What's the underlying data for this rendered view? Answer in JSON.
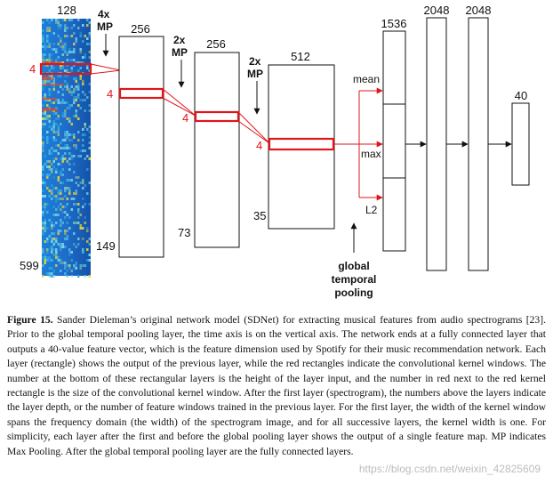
{
  "diagram": {
    "input": {
      "width": "128",
      "height": "599",
      "kernel": "4"
    },
    "pool_labels": [
      {
        "factor": "4x",
        "op": "MP"
      },
      {
        "factor": "2x",
        "op": "MP"
      },
      {
        "factor": "2x",
        "op": "MP"
      }
    ],
    "layers": [
      {
        "depth": "256",
        "length": "149",
        "kernel": "4"
      },
      {
        "depth": "256",
        "length": "73",
        "kernel": "4"
      },
      {
        "depth": "512",
        "length": "35",
        "kernel": "4"
      }
    ],
    "pooling": {
      "ops": [
        "mean",
        "max",
        "L2"
      ],
      "label_lines": [
        "global",
        "temporal",
        "pooling"
      ],
      "output_size": "1536"
    },
    "dense": [
      "2048",
      "2048",
      "40"
    ]
  },
  "caption": {
    "label": "Figure 15.",
    "text": "Sander Dieleman’s original network model (SDNet) for extracting musical features from audio spectrograms [23]. Prior to the global temporal pooling layer, the time axis is on the vertical axis. The network ends at a fully connected layer that outputs a 40-value feature vector, which is the feature dimension used by Spotify for their music recommendation network. Each layer (rectangle) shows the output of the previous layer, while the red rectangles indicate the convolutional kernel windows. The number at the bottom of these rectangular layers is the height of the layer input, and the number in red next to the red kernel rectangle is the size of the convolutional kernel window. After the first layer (spectrogram), the numbers above the layers indicate the layer depth, or the number of feature windows trained in the previous layer. For the first layer, the width of the kernel window spans the frequency domain (the width) of the spectrogram image, and for all successive layers, the kernel width is one. For simplicity, each layer after the first and before the global pooling layer shows the output of a single feature map. MP indicates Max Pooling. After the global temporal pooling layer are the fully connected layers."
  },
  "watermark": "https://blog.csdn.net/weixin_42825609"
}
